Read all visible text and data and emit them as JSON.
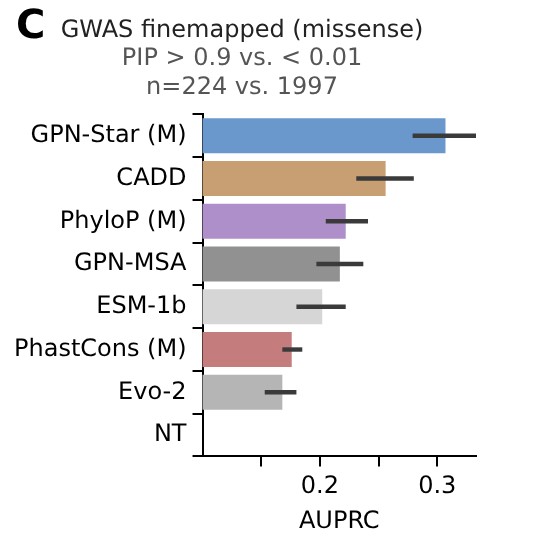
{
  "chart_data": {
    "type": "bar",
    "orientation": "horizontal",
    "title": "GWAS finemapped (missense)",
    "subtitle": "PIP > 0.9 vs. < 0.01\nn=224 vs. 1997",
    "xlabel": "AUPRC",
    "annotations": [
      "C"
    ],
    "categories": [
      "GPN-Star (M)",
      "CADD",
      "PhyloP (M)",
      "GPN-MSA",
      "ESM-1b",
      "PhastCons (M)",
      "Evo-2",
      "NT"
    ],
    "values": [
      0.307,
      0.256,
      0.222,
      0.217,
      0.202,
      0.176,
      0.168,
      null
    ],
    "colors": [
      "#6a98cc",
      "#c89f72",
      "#ae8fc9",
      "#919191",
      "#d6d6d6",
      "#c47c7c",
      "#b5b5b5",
      "#b5b5b5"
    ],
    "errors": [
      [
        0.279,
        0.333
      ],
      [
        0.231,
        0.28
      ],
      [
        0.205,
        0.241
      ],
      [
        0.197,
        0.237
      ],
      [
        0.18,
        0.222
      ],
      [
        0.168,
        0.185
      ],
      [
        0.153,
        0.18
      ],
      null
    ],
    "xlim": [
      0.1,
      0.333
    ],
    "xticks": [
      {
        "value": 0.15,
        "label": null
      },
      0.2,
      {
        "value": 0.25,
        "label": null
      },
      0.3
    ],
    "grid": false,
    "legend": false
  }
}
